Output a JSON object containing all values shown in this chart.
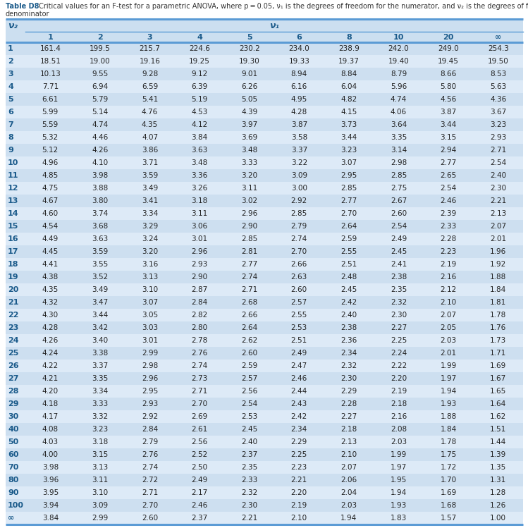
{
  "title_bold": "Table D8",
  "title_line1": " Critical values for an F-test for a parametric ANOVA, where p = 0.05, ν₁ is the degrees of freedom for the numerator, and ν₂ is the degrees of freedom for the",
  "title_line2": "denominator",
  "col_headers": [
    "1",
    "2",
    "3",
    "4",
    "5",
    "6",
    "8",
    "10",
    "20",
    "∞"
  ],
  "row_headers": [
    "1",
    "2",
    "3",
    "4",
    "5",
    "6",
    "7",
    "8",
    "9",
    "10",
    "11",
    "12",
    "13",
    "14",
    "15",
    "16",
    "17",
    "18",
    "19",
    "20",
    "21",
    "22",
    "23",
    "24",
    "25",
    "26",
    "27",
    "28",
    "29",
    "30",
    "40",
    "50",
    "60",
    "70",
    "80",
    "90",
    "100",
    "∞"
  ],
  "table_data": [
    [
      161.4,
      199.5,
      215.7,
      224.6,
      230.2,
      234.0,
      238.9,
      242.0,
      249.0,
      254.3
    ],
    [
      18.51,
      19.0,
      19.16,
      19.25,
      19.3,
      19.33,
      19.37,
      19.4,
      19.45,
      19.5
    ],
    [
      10.13,
      9.55,
      9.28,
      9.12,
      9.01,
      8.94,
      8.84,
      8.79,
      8.66,
      8.53
    ],
    [
      7.71,
      6.94,
      6.59,
      6.39,
      6.26,
      6.16,
      6.04,
      5.96,
      5.8,
      5.63
    ],
    [
      6.61,
      5.79,
      5.41,
      5.19,
      5.05,
      4.95,
      4.82,
      4.74,
      4.56,
      4.36
    ],
    [
      5.99,
      5.14,
      4.76,
      4.53,
      4.39,
      4.28,
      4.15,
      4.06,
      3.87,
      3.67
    ],
    [
      5.59,
      4.74,
      4.35,
      4.12,
      3.97,
      3.87,
      3.73,
      3.64,
      3.44,
      3.23
    ],
    [
      5.32,
      4.46,
      4.07,
      3.84,
      3.69,
      3.58,
      3.44,
      3.35,
      3.15,
      2.93
    ],
    [
      5.12,
      4.26,
      3.86,
      3.63,
      3.48,
      3.37,
      3.23,
      3.14,
      2.94,
      2.71
    ],
    [
      4.96,
      4.1,
      3.71,
      3.48,
      3.33,
      3.22,
      3.07,
      2.98,
      2.77,
      2.54
    ],
    [
      4.85,
      3.98,
      3.59,
      3.36,
      3.2,
      3.09,
      2.95,
      2.85,
      2.65,
      2.4
    ],
    [
      4.75,
      3.88,
      3.49,
      3.26,
      3.11,
      3.0,
      2.85,
      2.75,
      2.54,
      2.3
    ],
    [
      4.67,
      3.8,
      3.41,
      3.18,
      3.02,
      2.92,
      2.77,
      2.67,
      2.46,
      2.21
    ],
    [
      4.6,
      3.74,
      3.34,
      3.11,
      2.96,
      2.85,
      2.7,
      2.6,
      2.39,
      2.13
    ],
    [
      4.54,
      3.68,
      3.29,
      3.06,
      2.9,
      2.79,
      2.64,
      2.54,
      2.33,
      2.07
    ],
    [
      4.49,
      3.63,
      3.24,
      3.01,
      2.85,
      2.74,
      2.59,
      2.49,
      2.28,
      2.01
    ],
    [
      4.45,
      3.59,
      3.2,
      2.96,
      2.81,
      2.7,
      2.55,
      2.45,
      2.23,
      1.96
    ],
    [
      4.41,
      3.55,
      3.16,
      2.93,
      2.77,
      2.66,
      2.51,
      2.41,
      2.19,
      1.92
    ],
    [
      4.38,
      3.52,
      3.13,
      2.9,
      2.74,
      2.63,
      2.48,
      2.38,
      2.16,
      1.88
    ],
    [
      4.35,
      3.49,
      3.1,
      2.87,
      2.71,
      2.6,
      2.45,
      2.35,
      2.12,
      1.84
    ],
    [
      4.32,
      3.47,
      3.07,
      2.84,
      2.68,
      2.57,
      2.42,
      2.32,
      2.1,
      1.81
    ],
    [
      4.3,
      3.44,
      3.05,
      2.82,
      2.66,
      2.55,
      2.4,
      2.3,
      2.07,
      1.78
    ],
    [
      4.28,
      3.42,
      3.03,
      2.8,
      2.64,
      2.53,
      2.38,
      2.27,
      2.05,
      1.76
    ],
    [
      4.26,
      3.4,
      3.01,
      2.78,
      2.62,
      2.51,
      2.36,
      2.25,
      2.03,
      1.73
    ],
    [
      4.24,
      3.38,
      2.99,
      2.76,
      2.6,
      2.49,
      2.34,
      2.24,
      2.01,
      1.71
    ],
    [
      4.22,
      3.37,
      2.98,
      2.74,
      2.59,
      2.47,
      2.32,
      2.22,
      1.99,
      1.69
    ],
    [
      4.21,
      3.35,
      2.96,
      2.73,
      2.57,
      2.46,
      2.3,
      2.2,
      1.97,
      1.67
    ],
    [
      4.2,
      3.34,
      2.95,
      2.71,
      2.56,
      2.44,
      2.29,
      2.19,
      1.94,
      1.65
    ],
    [
      4.18,
      3.33,
      2.93,
      2.7,
      2.54,
      2.43,
      2.28,
      2.18,
      1.93,
      1.64
    ],
    [
      4.17,
      3.32,
      2.92,
      2.69,
      2.53,
      2.42,
      2.27,
      2.16,
      1.88,
      1.62
    ],
    [
      4.08,
      3.23,
      2.84,
      2.61,
      2.45,
      2.34,
      2.18,
      2.08,
      1.84,
      1.51
    ],
    [
      4.03,
      3.18,
      2.79,
      2.56,
      2.4,
      2.29,
      2.13,
      2.03,
      1.78,
      1.44
    ],
    [
      4.0,
      3.15,
      2.76,
      2.52,
      2.37,
      2.25,
      2.1,
      1.99,
      1.75,
      1.39
    ],
    [
      3.98,
      3.13,
      2.74,
      2.5,
      2.35,
      2.23,
      2.07,
      1.97,
      1.72,
      1.35
    ],
    [
      3.96,
      3.11,
      2.72,
      2.49,
      2.33,
      2.21,
      2.06,
      1.95,
      1.7,
      1.31
    ],
    [
      3.95,
      3.1,
      2.71,
      2.17,
      2.32,
      2.2,
      2.04,
      1.94,
      1.69,
      1.28
    ],
    [
      3.94,
      3.09,
      2.7,
      2.46,
      2.3,
      2.19,
      2.03,
      1.93,
      1.68,
      1.26
    ],
    [
      3.84,
      2.99,
      2.6,
      2.37,
      2.21,
      2.1,
      1.94,
      1.83,
      1.57,
      1.0
    ]
  ],
  "header_bg_color": "#ccdff0",
  "odd_row_color": "#cddff0",
  "even_row_color": "#ddeaf7",
  "header_text_color": "#1a5a8a",
  "data_text_color": "#222222",
  "border_color": "#5b9bd5",
  "title_bold_color": "#1a5a8a",
  "title_normal_color": "#333333",
  "background_color": "#ffffff",
  "title_fontsize": 7.0,
  "header_fontsize": 8.0,
  "data_fontsize": 7.5
}
